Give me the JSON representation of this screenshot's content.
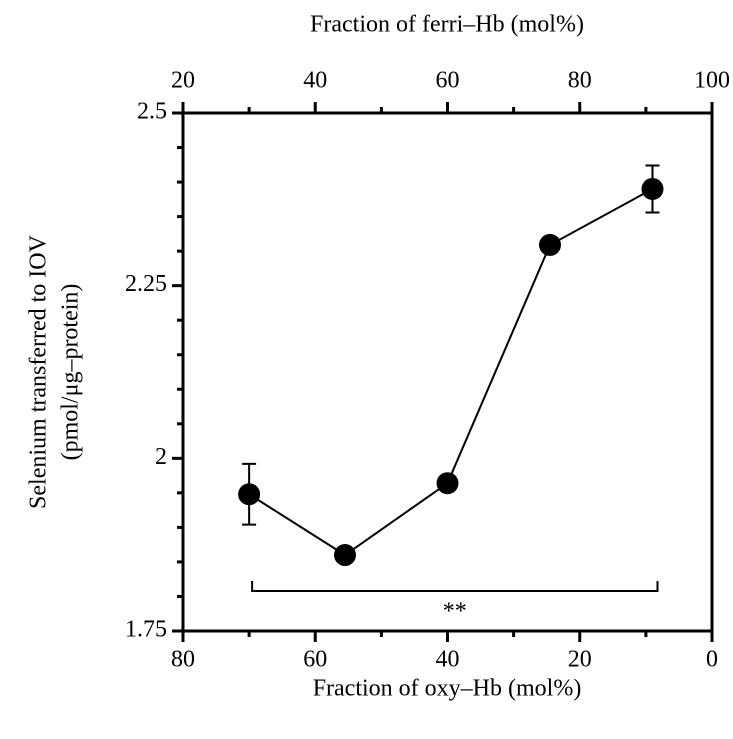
{
  "chart_data": {
    "type": "line",
    "xlabel": "Fraction of oxy–Hb (mol%)",
    "x2label": "Fraction of ferri–Hb (mol%)",
    "ylabel": [
      "Selenium transferred to IOV",
      "(pmol/μg–protein)"
    ],
    "x": [
      70,
      55.5,
      40,
      24.5,
      9
    ],
    "series": [
      {
        "color": "#000000",
        "values": [
          1.948,
          1.86,
          1.964,
          2.309,
          2.39
        ],
        "errors": [
          0.044,
          null,
          null,
          null,
          0.034
        ]
      }
    ],
    "xlim": [
      80,
      0
    ],
    "xticks": [
      80,
      60,
      40,
      20,
      0
    ],
    "xminorticks": [
      70,
      50,
      30,
      10
    ],
    "x2lim": [
      20,
      100
    ],
    "x2ticks": [
      20,
      40,
      60,
      80,
      100
    ],
    "x2minorticks": [
      30,
      50,
      70,
      90
    ],
    "ylim": [
      1.75,
      2.5
    ],
    "yticks": [
      1.75,
      2,
      2.25,
      2.5
    ],
    "yminorticks": [
      1.8,
      1.85,
      1.9,
      1.95,
      2.05,
      2.1,
      2.15,
      2.2,
      2.3,
      2.35,
      2.4,
      2.45
    ],
    "annotation": "**"
  }
}
